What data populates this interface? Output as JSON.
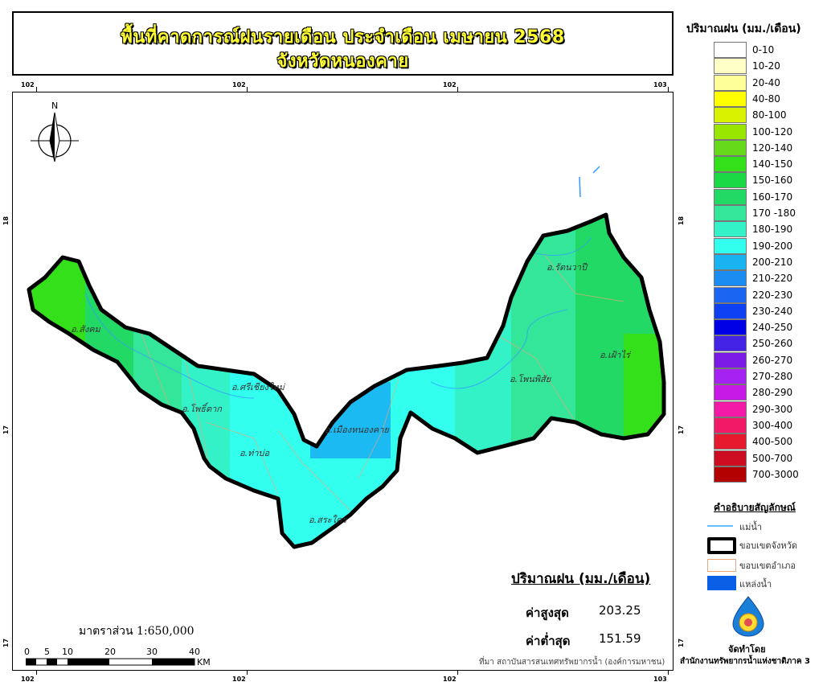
{
  "title": {
    "line1": "พื้นที่คาดการณ์ฝนรายเดือน ประจำเดือน เมษายน 2568",
    "line2": "จังหวัดหนองคาย"
  },
  "coords": {
    "top": [
      "102",
      "102",
      "102",
      "103"
    ],
    "bottom": [
      "102",
      "102",
      "102",
      "103"
    ],
    "left": [
      "18",
      "17",
      "17"
    ],
    "right": [
      "18",
      "17",
      "17"
    ]
  },
  "north_label": "N",
  "districts": [
    {
      "name": "อ.สังคม"
    },
    {
      "name": "อ.ศรีเชียงใหม่"
    },
    {
      "name": "อ.โพธิ์ตาก"
    },
    {
      "name": "อ.ท่าบ่อ"
    },
    {
      "name": "อ.เมืองหนองคาย"
    },
    {
      "name": "อ.สระใคร"
    },
    {
      "name": "อ.โพนพิสัย"
    },
    {
      "name": "อ.รัตนวาปี"
    },
    {
      "name": "อ.เฝ้าไร่"
    }
  ],
  "legend": {
    "title": "ปริมาณฝน (มม./เดือน)",
    "items": [
      {
        "label": "0-10",
        "color": "#ffffff"
      },
      {
        "label": "10-20",
        "color": "#ffffc6"
      },
      {
        "label": "20-40",
        "color": "#ffff99"
      },
      {
        "label": "40-80",
        "color": "#ffff00"
      },
      {
        "label": "80-100",
        "color": "#d9f200"
      },
      {
        "label": "100-120",
        "color": "#99e600"
      },
      {
        "label": "120-140",
        "color": "#66d91a"
      },
      {
        "label": "140-150",
        "color": "#33e01a"
      },
      {
        "label": "150-160",
        "color": "#1ad944"
      },
      {
        "label": "160-170",
        "color": "#22d966"
      },
      {
        "label": "170 -180",
        "color": "#33e699"
      },
      {
        "label": "180-190",
        "color": "#33f2c8"
      },
      {
        "label": "190-200",
        "color": "#33ffee"
      },
      {
        "label": "200-210",
        "color": "#1ab3f2"
      },
      {
        "label": "210-220",
        "color": "#1a8cf2"
      },
      {
        "label": "220-230",
        "color": "#1a66f2"
      },
      {
        "label": "230-240",
        "color": "#0d40f2"
      },
      {
        "label": "240-250",
        "color": "#0000e6"
      },
      {
        "label": "250-260",
        "color": "#4422e6"
      },
      {
        "label": "260-270",
        "color": "#7a1ae6"
      },
      {
        "label": "270-280",
        "color": "#a622f2"
      },
      {
        "label": "280-290",
        "color": "#c81ae6"
      },
      {
        "label": "290-300",
        "color": "#f21aa6"
      },
      {
        "label": "300-400",
        "color": "#f21a66"
      },
      {
        "label": "400-500",
        "color": "#e6192e"
      },
      {
        "label": "500-700",
        "color": "#cc0d22"
      },
      {
        "label": "700-3000",
        "color": "#b30000"
      }
    ]
  },
  "key": {
    "title": "คำอธิบายสัญลักษณ์",
    "river": "แม่น้ำ",
    "province": "ขอบเขตจังหวัด",
    "district": "ขอบเขตอำเภอ",
    "water": "แหล่งน้ำ"
  },
  "stats": {
    "title": "ปริมาณฝน (มม./เดือน)",
    "max_label": "ค่าสูงสุด",
    "max_value": "203.25",
    "min_label": "ค่าต่ำสุด",
    "min_value": "151.59"
  },
  "scale": {
    "text": "มาตราส่วน 1:650,000",
    "numbers": [
      "0",
      "5",
      "10",
      "20",
      "30",
      "40"
    ],
    "unit": "KM"
  },
  "source": "ที่มา  สถาบันสารสนเทศทรัพยากรน้ำ (องค์การมหาชน)",
  "made_by": "จัดทำโดย",
  "agency": "สำนักงานทรัพยากรน้ำแห่งชาติภาค 3"
}
